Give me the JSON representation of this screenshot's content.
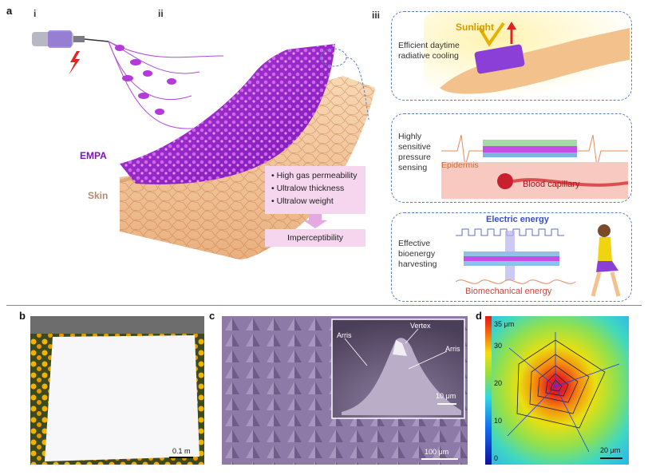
{
  "panels": {
    "a": "a",
    "b": "b",
    "c": "c",
    "d": "d"
  },
  "sub": {
    "i": "i",
    "ii": "ii",
    "iii": "iii"
  },
  "panel_a": {
    "empa_label": "EMPA",
    "skin_label": "Skin",
    "properties": [
      "High gas permeability",
      "Ultralow thickness",
      "Ultralow weight"
    ],
    "result": "Imperceptibility"
  },
  "panel_iii": {
    "cooling": {
      "text": "Efficient daytime radiative cooling",
      "sunlight": "Sunlight"
    },
    "pressure": {
      "text": "Highly sensitive pressure sensing",
      "epidermis": "Epidermis",
      "capillary": "Blood capillary"
    },
    "energy": {
      "text": "Effective bioenergy harvesting",
      "electric": "Electric energy",
      "biomech": "Biomechanical energy"
    }
  },
  "panel_b": {
    "scale": "0.1 m"
  },
  "panel_c": {
    "scale_main": "100 μm",
    "inset": {
      "vertex": "Vertex",
      "arris_left": "Arris",
      "arris_right": "Arris",
      "scale": "10 μm"
    }
  },
  "panel_d": {
    "colorbar_ticks": [
      "35 μm",
      "30",
      "20",
      "10",
      "0"
    ],
    "scale": "20 μm"
  }
}
